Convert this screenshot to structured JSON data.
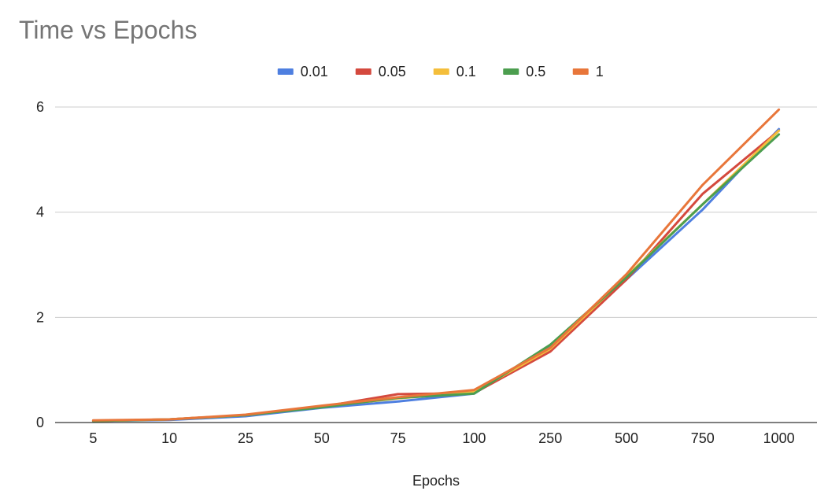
{
  "chart_data": {
    "type": "line",
    "title": "Time vs Epochs",
    "xlabel": "Epochs",
    "ylabel": "",
    "categories": [
      "5",
      "10",
      "25",
      "50",
      "75",
      "100",
      "250",
      "500",
      "750",
      "1000"
    ],
    "yticks": [
      "0",
      "2",
      "4",
      "6"
    ],
    "ylim": [
      0,
      6
    ],
    "grid": true,
    "legend_position": "top",
    "series": [
      {
        "name": "0.01",
        "color": "#4e7fe0",
        "values": [
          0.03,
          0.05,
          0.12,
          0.28,
          0.4,
          0.55,
          1.45,
          2.72,
          4.05,
          5.58
        ]
      },
      {
        "name": "0.05",
        "color": "#d4493e",
        "values": [
          0.03,
          0.06,
          0.14,
          0.3,
          0.54,
          0.56,
          1.35,
          2.72,
          4.35,
          5.55
        ]
      },
      {
        "name": "0.1",
        "color": "#f4be3b",
        "values": [
          0.03,
          0.06,
          0.14,
          0.3,
          0.46,
          0.58,
          1.4,
          2.78,
          4.15,
          5.55
        ]
      },
      {
        "name": "0.5",
        "color": "#4c9e4f",
        "values": [
          0.03,
          0.06,
          0.14,
          0.29,
          0.47,
          0.55,
          1.48,
          2.76,
          4.15,
          5.48
        ]
      },
      {
        "name": "1",
        "color": "#e8763a",
        "values": [
          0.04,
          0.06,
          0.15,
          0.32,
          0.48,
          0.62,
          1.42,
          2.82,
          4.52,
          5.95
        ]
      }
    ]
  }
}
